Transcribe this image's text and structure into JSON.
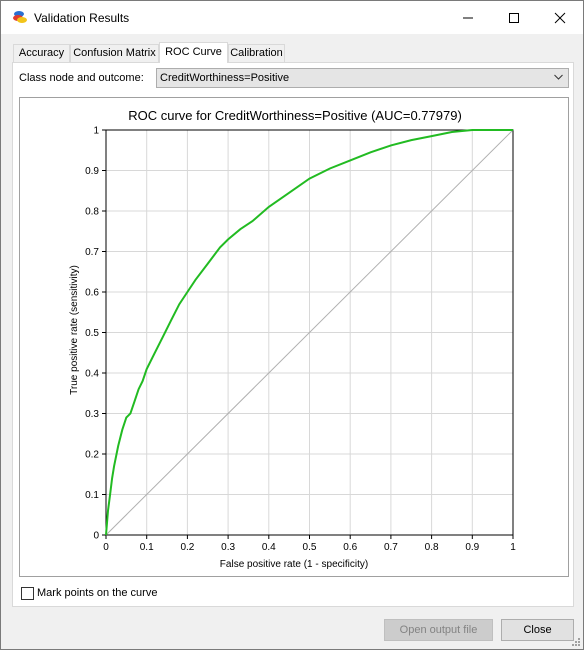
{
  "window": {
    "title": "Validation Results"
  },
  "tabs": [
    {
      "label": "Accuracy",
      "active": false
    },
    {
      "label": "Confusion Matrix",
      "active": false
    },
    {
      "label": "ROC Curve",
      "active": true
    },
    {
      "label": "Calibration",
      "active": false
    }
  ],
  "class_node": {
    "label": "Class node and outcome:",
    "value": "CreditWorthiness=Positive"
  },
  "mark_points": {
    "label": "Mark points on the curve",
    "checked": false
  },
  "buttons": {
    "open_output": "Open output file",
    "close": "Close"
  },
  "colors": {
    "curve": "#22bb22",
    "diagonal": "#b0b0b0",
    "grid": "#d8d8d8"
  },
  "chart_data": {
    "type": "line",
    "title": "ROC curve for CreditWorthiness=Positive (AUC=0.77979)",
    "xlabel": "False positive rate (1 - specificity)",
    "ylabel": "True positive rate (sensitivity)",
    "xlim": [
      0,
      1
    ],
    "ylim": [
      0,
      1
    ],
    "xticks": [
      "0",
      "0.1",
      "0.2",
      "0.3",
      "0.4",
      "0.5",
      "0.6",
      "0.7",
      "0.8",
      "0.9",
      "1"
    ],
    "yticks": [
      "0",
      "0.1",
      "0.2",
      "0.3",
      "0.4",
      "0.5",
      "0.6",
      "0.7",
      "0.8",
      "0.9",
      "1"
    ],
    "grid": true,
    "series": [
      {
        "x": [
          0,
          0.005,
          0.01,
          0.015,
          0.02,
          0.03,
          0.04,
          0.05,
          0.06,
          0.07,
          0.08,
          0.09,
          0.1,
          0.12,
          0.14,
          0.16,
          0.18,
          0.2,
          0.22,
          0.25,
          0.28,
          0.3,
          0.33,
          0.36,
          0.4,
          0.45,
          0.5,
          0.55,
          0.6,
          0.65,
          0.7,
          0.75,
          0.8,
          0.85,
          0.9,
          0.95,
          1
        ],
        "y": [
          0,
          0.06,
          0.1,
          0.14,
          0.17,
          0.22,
          0.26,
          0.29,
          0.3,
          0.33,
          0.36,
          0.38,
          0.41,
          0.45,
          0.49,
          0.53,
          0.57,
          0.6,
          0.63,
          0.67,
          0.71,
          0.73,
          0.755,
          0.775,
          0.81,
          0.845,
          0.88,
          0.905,
          0.925,
          0.945,
          0.962,
          0.975,
          0.985,
          0.995,
          1,
          1,
          1
        ]
      },
      {
        "x": [
          0,
          1
        ],
        "y": [
          0,
          1
        ]
      }
    ]
  }
}
